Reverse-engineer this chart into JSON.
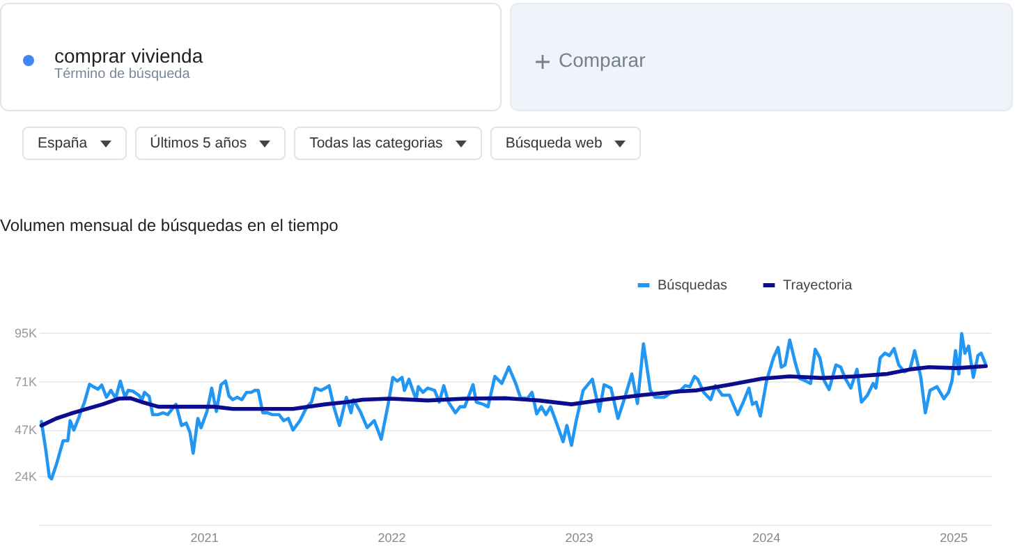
{
  "chart_data": {
    "type": "line",
    "title": "Volumen mensual de búsquedas en el tiempo",
    "annotations": [
      "comprar vivienda",
      "Término de búsqueda",
      "Comparar",
      "España",
      "Últimos 5 años",
      "Todas las categorias",
      "Búsqueda web"
    ],
    "xlim": [
      2020.12,
      2025.2
    ],
    "xticks": [
      2021,
      2022,
      2023,
      2024,
      2025
    ],
    "ylim": [
      0,
      95000
    ],
    "yticks": [
      {
        "value": 0,
        "label": null
      },
      {
        "value": 24000,
        "label": "24K"
      },
      {
        "value": 47000,
        "label": "47K"
      },
      {
        "value": 71000,
        "label": "71K"
      },
      {
        "value": 95000,
        "label": "95K"
      }
    ],
    "grid": "y",
    "legend": "top right",
    "tick_labels": "xy",
    "line_style": "solid",
    "series": [
      {
        "name": "Búsquedas",
        "color": "#2196f3",
        "x": [
          2020.133,
          2020.157,
          2020.175,
          2020.187,
          2020.212,
          2020.249,
          2020.274,
          2020.286,
          2020.306,
          2020.331,
          2020.348,
          2020.361,
          2020.39,
          2020.41,
          2020.435,
          2020.455,
          2020.48,
          2020.504,
          2020.529,
          2020.554,
          2020.579,
          2020.596,
          2020.621,
          2020.653,
          2020.67,
          2020.683,
          2020.708,
          2020.727,
          2020.757,
          2020.782,
          2020.807,
          2020.851,
          2020.881,
          2020.906,
          2020.926,
          2020.943,
          2020.968,
          2020.985,
          2021.017,
          2021.042,
          2021.067,
          2021.092,
          2021.116,
          2021.134,
          2021.154,
          2021.178,
          2021.203,
          2021.228,
          2021.253,
          2021.273,
          2021.29,
          2021.315,
          2021.34,
          2021.364,
          2021.401,
          2021.426,
          2021.451,
          2021.476,
          2021.513,
          2021.55,
          2021.575,
          2021.595,
          2021.625,
          2021.649,
          2021.669,
          2021.694,
          2021.724,
          2021.761,
          2021.786,
          2021.798,
          2021.835,
          2021.872,
          2021.91,
          2021.947,
          2021.984,
          2022.009,
          2022.033,
          2022.058,
          2022.071,
          2022.095,
          2022.133,
          2022.145,
          2022.17,
          2022.195,
          2022.232,
          2022.257,
          2022.281,
          2022.306,
          2022.343,
          2022.368,
          2022.393,
          2022.437,
          2022.455,
          2022.492,
          2022.517,
          2022.554,
          2022.591,
          2022.628,
          2022.665,
          2022.69,
          2022.727,
          2022.752,
          2022.777,
          2022.802,
          2022.826,
          2022.851,
          2022.888,
          2022.918,
          2022.938,
          2022.963,
          2022.988,
          2023.025,
          2023.074,
          2023.112,
          2023.137,
          2023.174,
          2023.211,
          2023.248,
          2023.285,
          2023.315,
          2023.347,
          2023.384,
          2023.409,
          2023.459,
          2023.496,
          2023.545,
          2023.57,
          2023.595,
          2023.62,
          2023.637,
          2023.669,
          2023.706,
          2023.731,
          2023.768,
          2023.806,
          2023.85,
          2023.88,
          2023.91,
          2023.929,
          2023.949,
          2023.971,
          2024.004,
          2024.041,
          2024.066,
          2024.083,
          2024.103,
          2024.128,
          2024.157,
          2024.182,
          2024.214,
          2024.239,
          2024.264,
          2024.289,
          2024.313,
          2024.338,
          2024.375,
          2024.4,
          2024.425,
          2024.454,
          2024.487,
          2024.511,
          2024.543,
          2024.573,
          2024.588,
          2024.611,
          2024.636,
          2024.66,
          2024.685,
          2024.71,
          2024.74,
          2024.77,
          2024.795,
          2024.827,
          2024.852,
          2024.877,
          2024.914,
          2024.951,
          2024.976,
          2024.994,
          2025.013,
          2025.031,
          2025.046,
          2025.063,
          2025.083,
          2025.108,
          2025.133,
          2025.15,
          2025.175
        ],
        "values": [
          51000,
          36400,
          23700,
          22600,
          29500,
          41500,
          41500,
          51400,
          46800,
          52500,
          57200,
          60000,
          69400,
          68200,
          67000,
          69000,
          63000,
          66400,
          62500,
          71000,
          63000,
          66400,
          66000,
          64000,
          61800,
          65400,
          63400,
          54400,
          54400,
          55300,
          54400,
          59500,
          49000,
          50200,
          45600,
          35300,
          52500,
          47900,
          56000,
          67500,
          56000,
          69200,
          71000,
          63600,
          61800,
          63000,
          61800,
          65400,
          65400,
          66400,
          66400,
          55300,
          55300,
          54400,
          54400,
          51400,
          52500,
          46800,
          51400,
          58300,
          60600,
          67500,
          66400,
          67500,
          68700,
          58300,
          49000,
          63000,
          55300,
          61800,
          56000,
          48000,
          51400,
          42200,
          59500,
          72800,
          71000,
          72800,
          66400,
          71900,
          61800,
          68200,
          65400,
          67500,
          66400,
          60600,
          68700,
          60600,
          55300,
          58300,
          58300,
          69200,
          60600,
          59500,
          58300,
          73300,
          69800,
          77900,
          69800,
          63000,
          62300,
          65400,
          54800,
          58300,
          54400,
          58300,
          49000,
          41000,
          49000,
          39200,
          51400,
          66400,
          71900,
          56000,
          69200,
          67500,
          52500,
          63000,
          74500,
          59900,
          89400,
          66400,
          63000,
          63000,
          65400,
          66400,
          68700,
          68200,
          73300,
          71900,
          65400,
          61800,
          68700,
          64000,
          64000,
          54400,
          60600,
          67500,
          59500,
          60600,
          53700,
          71000,
          82500,
          87600,
          77900,
          79000,
          91300,
          80200,
          72200,
          71000,
          69800,
          86700,
          82500,
          71000,
          66800,
          79000,
          77900,
          72200,
          67500,
          76800,
          60600,
          64000,
          69800,
          67500,
          82500,
          84800,
          83600,
          87100,
          79000,
          75600,
          76800,
          86000,
          73300,
          55300,
          66400,
          68200,
          62300,
          65400,
          71000,
          86000,
          74500,
          94500,
          84800,
          88300,
          72800,
          83600,
          84800,
          79000
        ]
      },
      {
        "name": "Trayectoria",
        "color": "#0b0c8e",
        "x": [
          2020.133,
          2020.212,
          2020.286,
          2020.373,
          2020.46,
          2020.546,
          2020.608,
          2020.67,
          2020.757,
          2020.906,
          2021.055,
          2021.154,
          2021.302,
          2021.476,
          2021.649,
          2021.761,
          2021.848,
          2021.996,
          2022.195,
          2022.393,
          2022.616,
          2022.789,
          2022.963,
          2023.137,
          2023.335,
          2023.545,
          2023.632,
          2023.806,
          2023.979,
          2024.128,
          2024.301,
          2024.475,
          2024.648,
          2024.772,
          2024.871,
          2025.02,
          2025.175
        ],
        "values": [
          49000,
          52500,
          54800,
          57200,
          59500,
          62300,
          62500,
          60600,
          58300,
          58300,
          58300,
          57200,
          57200,
          57200,
          59500,
          60600,
          61800,
          62300,
          61400,
          62300,
          62500,
          61400,
          59500,
          61800,
          64000,
          65900,
          66400,
          69200,
          72200,
          73300,
          72500,
          73300,
          74500,
          76800,
          77900,
          77400,
          78400
        ]
      }
    ]
  }
}
